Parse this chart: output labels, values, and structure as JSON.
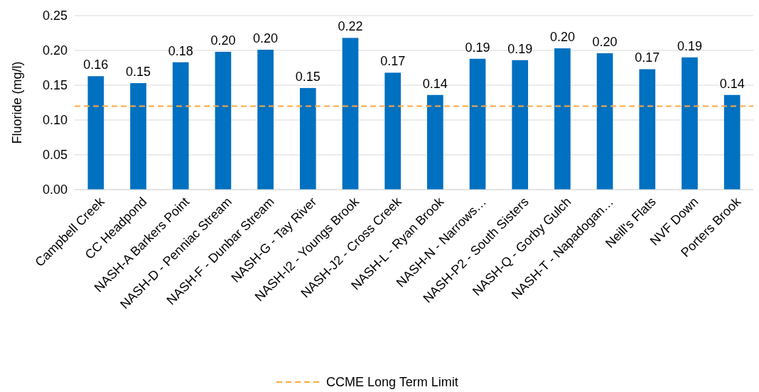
{
  "chart_data": {
    "type": "bar",
    "ylabel": "Fluoride (mg/l)",
    "categories": [
      "Campbell Creek",
      "CC Headpond",
      "NASH-A  Barkers Point",
      "NASH-D - Penniac Stream",
      "NASH-F - Dunbar Stream",
      "NASH-G - Tay River",
      "NASH-I2 - Youngs Brook",
      "NASH-J2 - Cross Creek",
      "NASH-L - Ryan Brook",
      "NASH-N - Narrows…",
      "NASH-P2 - South Sisters",
      "NASH-Q - Gorby Gulch",
      "NASH-T - Napadogan…",
      "Neill's Flats",
      "NVF Down",
      "Porters Brook"
    ],
    "values": [
      0.163,
      0.153,
      0.183,
      0.198,
      0.201,
      0.146,
      0.218,
      0.168,
      0.136,
      0.188,
      0.186,
      0.203,
      0.196,
      0.173,
      0.19,
      0.136
    ],
    "value_labels": [
      "0.16",
      "0.15",
      "0.18",
      "0.20",
      "0.20",
      "0.15",
      "0.22",
      "0.17",
      "0.14",
      "0.19",
      "0.19",
      "0.20",
      "0.20",
      "0.17",
      "0.19",
      "0.14"
    ],
    "color": "#0070c0",
    "ylim": [
      0,
      0.25
    ],
    "yticks": [
      {
        "value": 0,
        "label": "0.00"
      },
      {
        "value": 0.05,
        "label": "0.05"
      },
      {
        "value": 0.1,
        "label": "0.10"
      },
      {
        "value": 0.15,
        "label": "0.15"
      },
      {
        "value": 0.2,
        "label": "0.20"
      },
      {
        "value": 0.25,
        "label": "0.25"
      }
    ],
    "grid": "y",
    "ref_lines": [
      {
        "axis": "y",
        "value": 0.12,
        "label": "CCME Long Term Limit",
        "color": "#ffa940",
        "line_style": "dashed"
      }
    ],
    "legend": "bottom"
  }
}
